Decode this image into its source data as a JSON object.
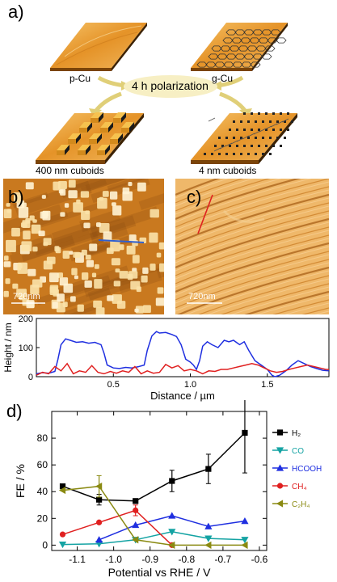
{
  "figure": {
    "panel_a": {
      "letter": "a)",
      "label_pcu": "p-Cu",
      "label_gcu": "g-Cu",
      "process": "4 h polarization",
      "label_left": "400 nm cuboids",
      "label_right": "4 nm cuboids",
      "colors": {
        "arrow": "#e0cf78",
        "ellipse": "#f7efc4",
        "cu": "#e79a2a",
        "cu_dark": "#6b3a05"
      }
    },
    "panel_b": {
      "letter": "b)",
      "scale_label": "720nm",
      "line_color": "#2f5fd0"
    },
    "panel_c": {
      "letter": "c)",
      "scale_label": "720nm",
      "line_color": "#e02020"
    }
  },
  "chart_data": [
    {
      "type": "line",
      "xlabel": "Distance / µm",
      "ylabel": "Height / nm",
      "xlim": [
        0,
        1.9
      ],
      "ylim": [
        0,
        200
      ],
      "xticks": [
        0.5,
        1.0,
        1.5
      ],
      "xtick_labels": [
        "0.5",
        "1.0",
        "1.5"
      ],
      "yticks": [
        0,
        100,
        200
      ],
      "ytick_labels": [
        "0",
        "100",
        "200"
      ],
      "series": [
        {
          "color": "#1f2fe0",
          "x": [
            0.0,
            0.04,
            0.08,
            0.12,
            0.14,
            0.16,
            0.19,
            0.22,
            0.26,
            0.3,
            0.34,
            0.38,
            0.42,
            0.44,
            0.46,
            0.5,
            0.54,
            0.58,
            0.62,
            0.66,
            0.7,
            0.72,
            0.75,
            0.78,
            0.8,
            0.84,
            0.88,
            0.91,
            0.94,
            0.97,
            1.0,
            1.02,
            1.04,
            1.06,
            1.08,
            1.11,
            1.14,
            1.18,
            1.22,
            1.25,
            1.28,
            1.32,
            1.35,
            1.38,
            1.42,
            1.46,
            1.5,
            1.53,
            1.55,
            1.58,
            1.62,
            1.66,
            1.7,
            1.74,
            1.78,
            1.82,
            1.86,
            1.9
          ],
          "y": [
            10,
            14,
            12,
            18,
            60,
            110,
            130,
            125,
            118,
            120,
            115,
            118,
            110,
            80,
            40,
            30,
            28,
            32,
            30,
            34,
            40,
            90,
            140,
            155,
            150,
            152,
            145,
            138,
            110,
            60,
            50,
            40,
            25,
            55,
            105,
            120,
            110,
            100,
            125,
            120,
            125,
            110,
            120,
            90,
            55,
            40,
            25,
            5,
            0,
            5,
            20,
            40,
            55,
            45,
            35,
            28,
            22,
            20
          ]
        },
        {
          "color": "#e02020",
          "x": [
            0.0,
            0.04,
            0.08,
            0.12,
            0.16,
            0.2,
            0.24,
            0.28,
            0.32,
            0.36,
            0.4,
            0.44,
            0.48,
            0.52,
            0.56,
            0.6,
            0.64,
            0.68,
            0.72,
            0.76,
            0.8,
            0.84,
            0.88,
            0.92,
            0.96,
            1.0,
            1.04,
            1.08,
            1.12,
            1.16,
            1.2,
            1.24,
            1.28,
            1.32,
            1.36,
            1.4,
            1.44,
            1.48,
            1.52,
            1.56,
            1.6,
            1.64,
            1.68,
            1.72,
            1.76,
            1.8,
            1.84,
            1.88,
            1.9
          ],
          "y": [
            5,
            15,
            10,
            35,
            20,
            45,
            10,
            20,
            15,
            38,
            15,
            10,
            18,
            12,
            20,
            15,
            35,
            10,
            20,
            12,
            15,
            42,
            30,
            38,
            20,
            25,
            20,
            10,
            20,
            18,
            25,
            25,
            30,
            35,
            40,
            45,
            40,
            30,
            20,
            15,
            18,
            25,
            30,
            35,
            40,
            35,
            30,
            25,
            25
          ]
        }
      ]
    },
    {
      "type": "line",
      "xlabel": "Potential vs RHE / V",
      "ylabel": "FE / %",
      "xlim": [
        -1.17,
        -0.58
      ],
      "ylim": [
        -4,
        100
      ],
      "xticks": [
        -1.1,
        -1.0,
        -0.9,
        -0.8,
        -0.7,
        -0.6
      ],
      "xtick_labels": [
        "-1.1",
        "-1.0",
        "-0.9",
        "-0.8",
        "-0.7",
        "-0.6"
      ],
      "yticks": [
        0,
        20,
        40,
        60,
        80
      ],
      "ytick_labels": [
        "0",
        "20",
        "40",
        "60",
        "80"
      ],
      "legend_position": "right",
      "series": [
        {
          "name": "H₂",
          "color": "#000000",
          "marker": "square",
          "x": [
            -1.14,
            -1.04,
            -0.94,
            -0.84,
            -0.74,
            -0.64
          ],
          "y": [
            44,
            34,
            33,
            48,
            57,
            84
          ],
          "err": [
            0,
            4,
            1,
            8,
            11,
            30
          ]
        },
        {
          "name": "CO",
          "color": "#14a3a3",
          "marker": "triangle-down",
          "x": [
            -1.14,
            -1.04,
            -0.94,
            -0.84,
            -0.74,
            -0.64
          ],
          "y": [
            0.5,
            1,
            4,
            10,
            5,
            4
          ],
          "err": [
            0,
            0,
            0,
            0,
            0,
            0
          ]
        },
        {
          "name": "HCOOH",
          "color": "#1f2fe0",
          "marker": "triangle-up",
          "x": [
            -1.04,
            -0.94,
            -0.84,
            -0.74,
            -0.64
          ],
          "y": [
            4,
            15,
            22,
            14,
            18
          ],
          "err": [
            0,
            0,
            0,
            0,
            0
          ]
        },
        {
          "name": "CH₄",
          "color": "#e02020",
          "marker": "circle",
          "x": [
            -1.14,
            -1.04,
            -0.94,
            -0.84
          ],
          "y": [
            8,
            17,
            26,
            0
          ],
          "err": [
            0,
            0,
            4,
            0
          ]
        },
        {
          "name": "C₂H₄",
          "color": "#8a8a12",
          "marker": "triangle-left",
          "x": [
            -1.14,
            -1.04,
            -0.94,
            -0.84,
            -0.74,
            -0.64
          ],
          "y": [
            41,
            44,
            4,
            0,
            0,
            0
          ],
          "err": [
            0,
            8,
            0,
            0,
            0,
            0
          ]
        }
      ]
    }
  ],
  "panel_d_letter": "d)"
}
